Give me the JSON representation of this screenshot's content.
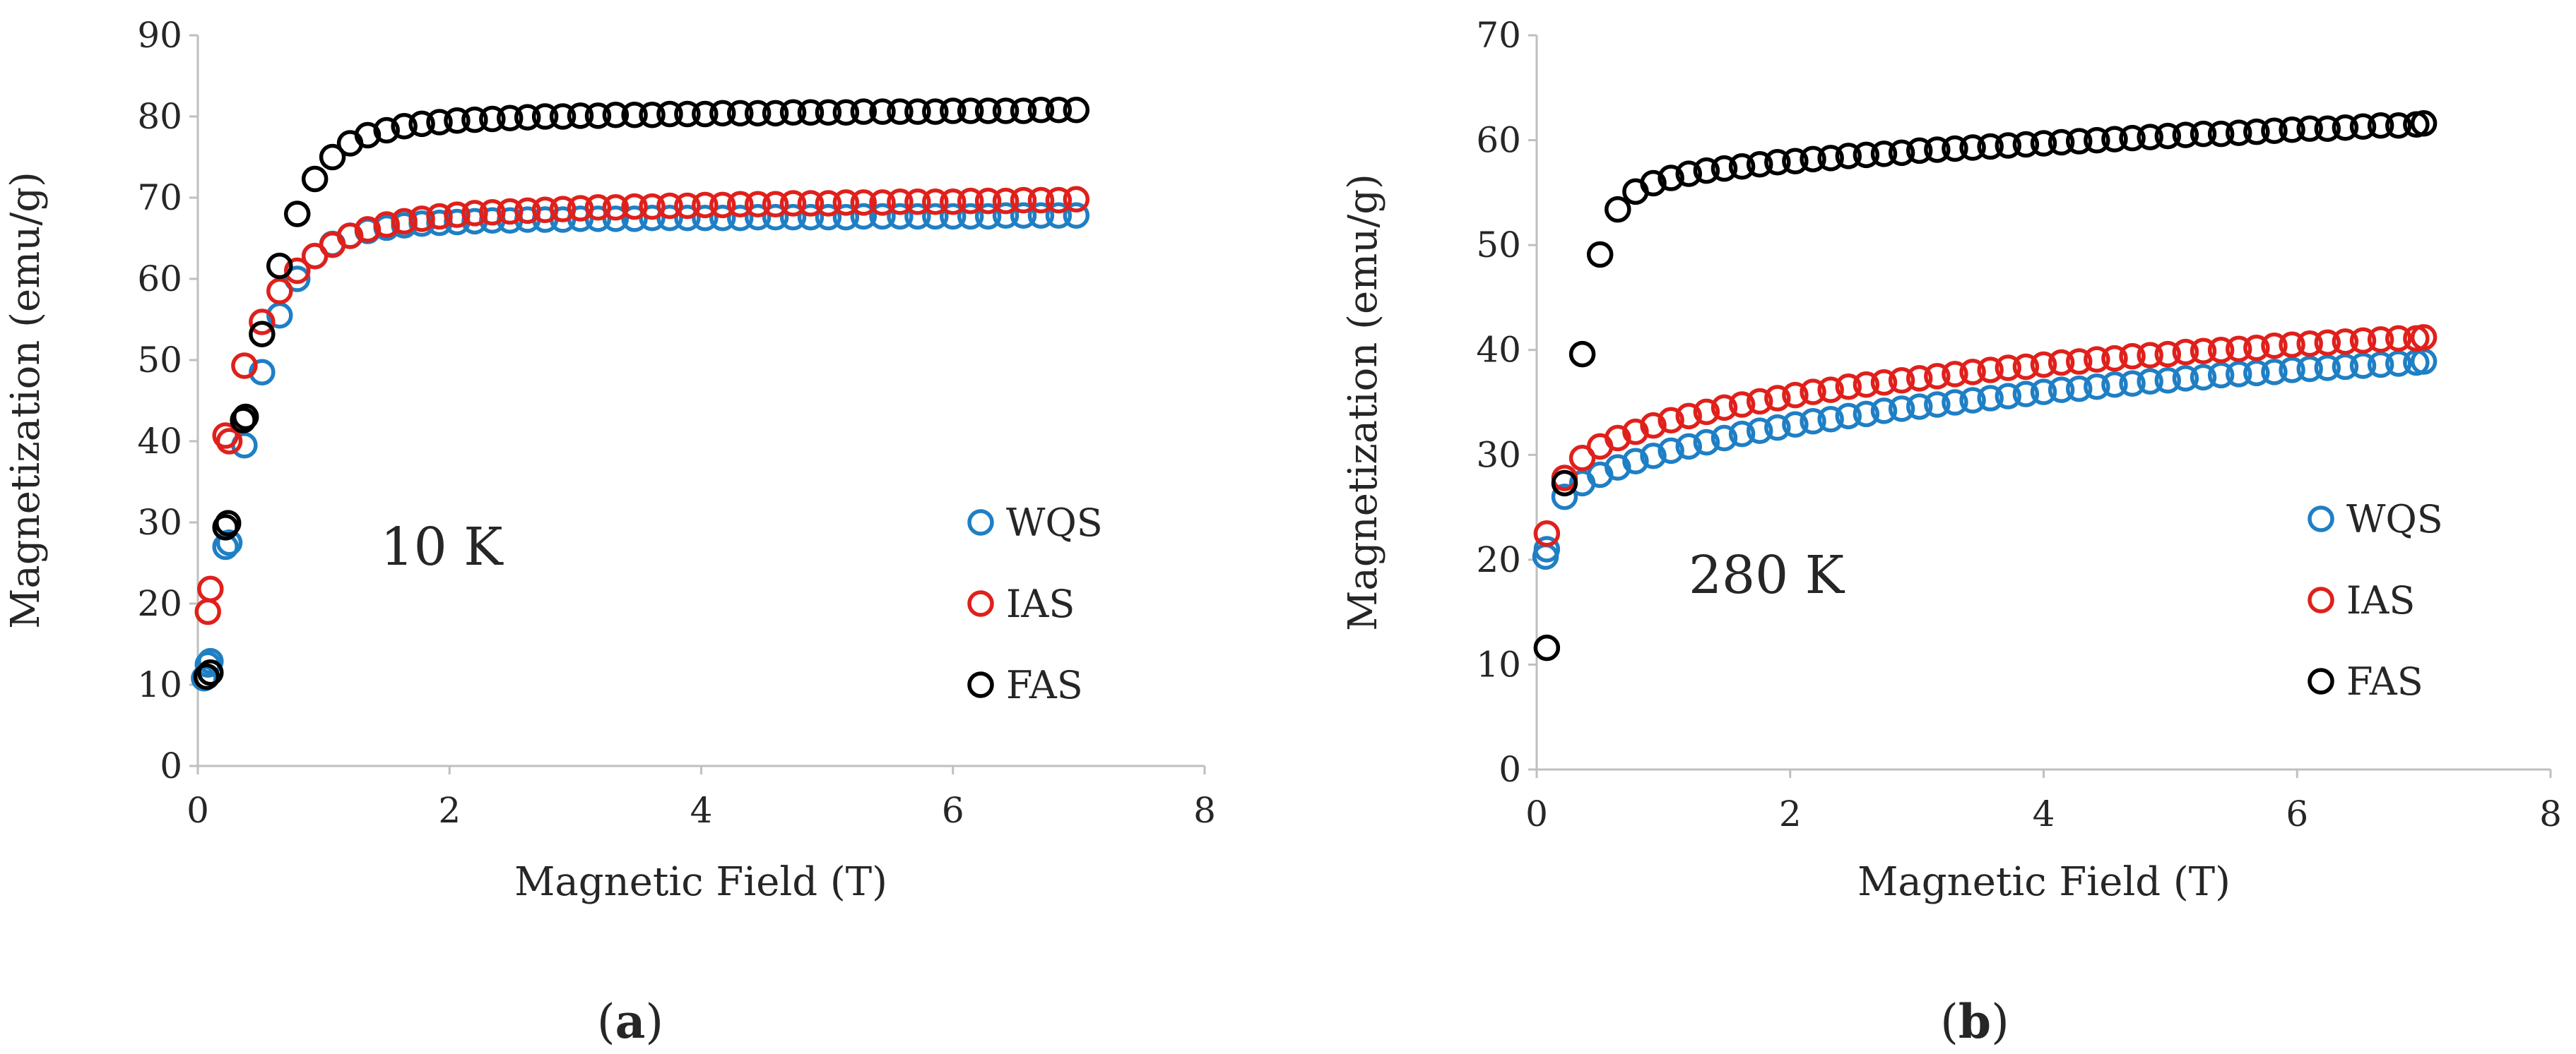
{
  "colors": {
    "WQS": "#1f7fc4",
    "IAS": "#e0201b",
    "FAS": "#000000",
    "axis": "#bfbfbf"
  },
  "chart_data": [
    {
      "type": "scatter",
      "panel_label": "(a)",
      "annotation": "10 K",
      "xlabel": "Magnetic Field (T)",
      "ylabel": "Magnetization (emu/g)",
      "xlim": [
        0,
        8
      ],
      "ylim": [
        0,
        90
      ],
      "xticks": [
        "0",
        "2",
        "4",
        "6",
        "8"
      ],
      "yticks": [
        "0",
        "10",
        "20",
        "30",
        "40",
        "50",
        "60",
        "70",
        "80",
        "90"
      ],
      "grid": false,
      "legend_position": "bottom-right",
      "series": [
        {
          "name": "WQS",
          "color": "#1f7fc4",
          "x": [
            0.05,
            0.08,
            0.1,
            0.22,
            0.25,
            0.37,
            0.51,
            0.65,
            0.79,
            0.93,
            1.07,
            1.21,
            1.35,
            1.5,
            1.64,
            1.78,
            1.92,
            2.06,
            2.2,
            2.34,
            2.48,
            2.62,
            2.76,
            2.9,
            3.04,
            3.18,
            3.32,
            3.47,
            3.61,
            3.75,
            3.89,
            4.03,
            4.17,
            4.31,
            4.45,
            4.59,
            4.73,
            4.87,
            5.01,
            5.15,
            5.29,
            5.44,
            5.58,
            5.72,
            5.86,
            6.0,
            6.14,
            6.28,
            6.42,
            6.56,
            6.7,
            6.84,
            6.98
          ],
          "y": [
            10.8,
            12.5,
            12.9,
            27,
            27.5,
            39.5,
            48.5,
            55.5,
            60,
            62.8,
            64.3,
            65.3,
            65.9,
            66.3,
            66.6,
            66.8,
            66.9,
            67.0,
            67.1,
            67.2,
            67.2,
            67.3,
            67.3,
            67.3,
            67.4,
            67.4,
            67.4,
            67.4,
            67.5,
            67.5,
            67.5,
            67.5,
            67.5,
            67.5,
            67.6,
            67.6,
            67.6,
            67.6,
            67.6,
            67.6,
            67.7,
            67.7,
            67.7,
            67.7,
            67.7,
            67.7,
            67.7,
            67.7,
            67.8,
            67.8,
            67.8,
            67.8,
            67.8
          ]
        },
        {
          "name": "IAS",
          "color": "#e0201b",
          "x": [
            0.08,
            0.1,
            0.22,
            0.25,
            0.37,
            0.51,
            0.65,
            0.79,
            0.93,
            1.07,
            1.21,
            1.35,
            1.5,
            1.64,
            1.78,
            1.92,
            2.06,
            2.2,
            2.34,
            2.48,
            2.62,
            2.76,
            2.9,
            3.04,
            3.18,
            3.32,
            3.47,
            3.61,
            3.75,
            3.89,
            4.03,
            4.17,
            4.31,
            4.45,
            4.59,
            4.73,
            4.87,
            5.01,
            5.15,
            5.29,
            5.44,
            5.58,
            5.72,
            5.86,
            6.0,
            6.14,
            6.28,
            6.42,
            6.56,
            6.7,
            6.84,
            6.98
          ],
          "y": [
            19,
            21.8,
            40.7,
            40,
            49.3,
            54.7,
            58.5,
            61,
            62.8,
            64.2,
            65.3,
            66.1,
            66.7,
            67.1,
            67.4,
            67.7,
            67.9,
            68.1,
            68.2,
            68.3,
            68.4,
            68.5,
            68.6,
            68.7,
            68.8,
            68.8,
            68.9,
            68.9,
            69.0,
            69.0,
            69.1,
            69.1,
            69.2,
            69.2,
            69.2,
            69.3,
            69.3,
            69.3,
            69.4,
            69.4,
            69.4,
            69.5,
            69.5,
            69.5,
            69.5,
            69.6,
            69.6,
            69.6,
            69.7,
            69.7,
            69.7,
            69.8
          ]
        },
        {
          "name": "FAS",
          "color": "#000000",
          "x": [
            0.07,
            0.1,
            0.22,
            0.24,
            0.36,
            0.38,
            0.51,
            0.65,
            0.79,
            0.93,
            1.07,
            1.21,
            1.35,
            1.5,
            1.64,
            1.78,
            1.92,
            2.06,
            2.2,
            2.34,
            2.48,
            2.62,
            2.76,
            2.9,
            3.04,
            3.18,
            3.32,
            3.47,
            3.61,
            3.75,
            3.89,
            4.03,
            4.17,
            4.31,
            4.45,
            4.59,
            4.73,
            4.87,
            5.01,
            5.15,
            5.29,
            5.44,
            5.58,
            5.72,
            5.86,
            6.0,
            6.14,
            6.28,
            6.42,
            6.56,
            6.7,
            6.84,
            6.98
          ],
          "y": [
            11,
            11.5,
            29.4,
            29.9,
            42.6,
            43,
            53.2,
            61.6,
            68,
            72.3,
            75,
            76.7,
            77.7,
            78.3,
            78.8,
            79.1,
            79.3,
            79.5,
            79.6,
            79.7,
            79.8,
            79.9,
            80.0,
            80.0,
            80.1,
            80.1,
            80.2,
            80.2,
            80.2,
            80.3,
            80.3,
            80.3,
            80.4,
            80.4,
            80.4,
            80.4,
            80.5,
            80.5,
            80.5,
            80.5,
            80.6,
            80.6,
            80.6,
            80.6,
            80.6,
            80.7,
            80.7,
            80.7,
            80.7,
            80.7,
            80.8,
            80.8,
            80.8
          ]
        }
      ]
    },
    {
      "type": "scatter",
      "panel_label": "(b)",
      "annotation": "280 K",
      "xlabel": "Magnetic Field (T)",
      "ylabel": "Magnetization (emu/g)",
      "xlim": [
        0,
        8
      ],
      "ylim": [
        0,
        70
      ],
      "xticks": [
        "0",
        "2",
        "4",
        "6",
        "8"
      ],
      "yticks": [
        "0",
        "10",
        "20",
        "30",
        "40",
        "50",
        "60",
        "70"
      ],
      "grid": false,
      "legend_position": "bottom-right",
      "series": [
        {
          "name": "WQS",
          "color": "#1f7fc4",
          "x": [
            0.07,
            0.08,
            0.22,
            0.36,
            0.5,
            0.64,
            0.78,
            0.92,
            1.06,
            1.2,
            1.34,
            1.48,
            1.62,
            1.76,
            1.9,
            2.04,
            2.18,
            2.32,
            2.46,
            2.6,
            2.74,
            2.88,
            3.02,
            3.16,
            3.3,
            3.44,
            3.58,
            3.72,
            3.86,
            4.0,
            4.14,
            4.28,
            4.42,
            4.56,
            4.7,
            4.84,
            4.98,
            5.12,
            5.26,
            5.4,
            5.54,
            5.68,
            5.82,
            5.96,
            6.1,
            6.24,
            6.38,
            6.52,
            6.66,
            6.8,
            6.94,
            7.0
          ],
          "y": [
            20.3,
            21,
            26,
            27.3,
            28.1,
            28.8,
            29.4,
            29.9,
            30.4,
            30.8,
            31.2,
            31.6,
            32.0,
            32.3,
            32.6,
            32.9,
            33.2,
            33.4,
            33.7,
            33.9,
            34.2,
            34.4,
            34.6,
            34.8,
            35.0,
            35.2,
            35.4,
            35.6,
            35.8,
            36.0,
            36.2,
            36.3,
            36.5,
            36.7,
            36.8,
            37.0,
            37.1,
            37.3,
            37.4,
            37.6,
            37.7,
            37.8,
            37.9,
            38.1,
            38.2,
            38.3,
            38.4,
            38.5,
            38.6,
            38.7,
            38.8,
            38.9
          ]
        },
        {
          "name": "IAS",
          "color": "#e0201b",
          "x": [
            0.08,
            0.22,
            0.36,
            0.5,
            0.64,
            0.78,
            0.92,
            1.06,
            1.2,
            1.34,
            1.48,
            1.62,
            1.76,
            1.9,
            2.04,
            2.18,
            2.32,
            2.46,
            2.6,
            2.74,
            2.88,
            3.02,
            3.16,
            3.3,
            3.44,
            3.58,
            3.72,
            3.86,
            4.0,
            4.14,
            4.28,
            4.42,
            4.56,
            4.7,
            4.84,
            4.98,
            5.12,
            5.26,
            5.4,
            5.54,
            5.68,
            5.82,
            5.96,
            6.1,
            6.24,
            6.38,
            6.52,
            6.66,
            6.8,
            6.94,
            7.0
          ],
          "y": [
            22.5,
            27.8,
            29.7,
            30.8,
            31.6,
            32.2,
            32.8,
            33.3,
            33.7,
            34.1,
            34.5,
            34.8,
            35.1,
            35.4,
            35.7,
            36.0,
            36.2,
            36.5,
            36.7,
            36.9,
            37.1,
            37.3,
            37.5,
            37.7,
            37.9,
            38.1,
            38.3,
            38.4,
            38.6,
            38.8,
            38.9,
            39.1,
            39.2,
            39.4,
            39.5,
            39.6,
            39.8,
            39.9,
            40.0,
            40.1,
            40.2,
            40.4,
            40.5,
            40.6,
            40.7,
            40.8,
            40.9,
            41.0,
            41.1,
            41.1,
            41.2
          ]
        },
        {
          "name": "FAS",
          "color": "#000000",
          "x": [
            0.08,
            0.22,
            0.36,
            0.5,
            0.64,
            0.78,
            0.92,
            1.06,
            1.2,
            1.34,
            1.48,
            1.62,
            1.76,
            1.9,
            2.04,
            2.18,
            2.32,
            2.46,
            2.6,
            2.74,
            2.88,
            3.02,
            3.16,
            3.3,
            3.44,
            3.58,
            3.72,
            3.86,
            4.0,
            4.14,
            4.28,
            4.42,
            4.56,
            4.7,
            4.84,
            4.98,
            5.12,
            5.26,
            5.4,
            5.54,
            5.68,
            5.82,
            5.96,
            6.1,
            6.24,
            6.38,
            6.52,
            6.66,
            6.8,
            6.94,
            7.0
          ],
          "y": [
            11.6,
            27.3,
            39.6,
            49.1,
            53.4,
            55.1,
            55.9,
            56.4,
            56.8,
            57.1,
            57.3,
            57.5,
            57.7,
            57.9,
            58.0,
            58.2,
            58.3,
            58.5,
            58.6,
            58.7,
            58.8,
            59.0,
            59.1,
            59.2,
            59.3,
            59.4,
            59.5,
            59.6,
            59.7,
            59.8,
            59.9,
            60.0,
            60.1,
            60.2,
            60.3,
            60.4,
            60.5,
            60.6,
            60.6,
            60.7,
            60.8,
            60.9,
            61.0,
            61.1,
            61.1,
            61.2,
            61.3,
            61.4,
            61.4,
            61.5,
            61.6
          ]
        }
      ]
    }
  ]
}
